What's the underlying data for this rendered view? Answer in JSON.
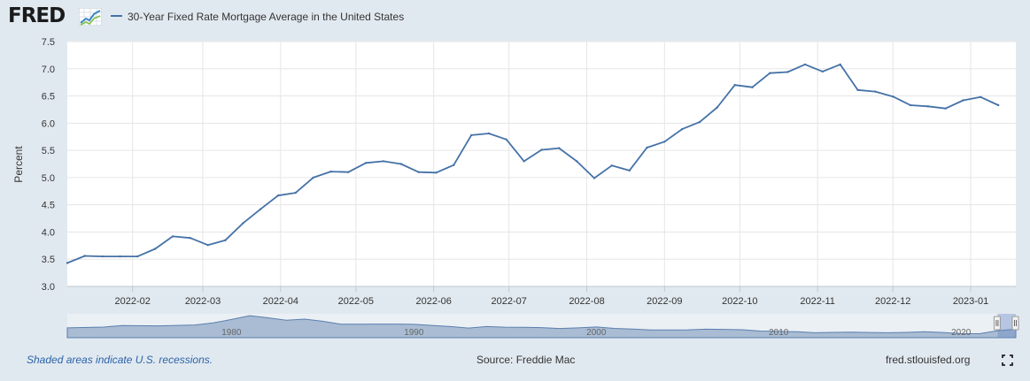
{
  "header": {
    "logo_text": "FRED",
    "logo_icon": "line-chart-icon",
    "legend_label": "30-Year Fixed Rate Mortgage Average in the United States"
  },
  "chart_data": {
    "type": "line",
    "title": "30-Year Fixed Rate Mortgage Average in the United States",
    "ylabel": "Percent",
    "xlabel": "",
    "ylim": [
      3.0,
      7.5
    ],
    "y_ticks": [
      "3.0",
      "3.5",
      "4.0",
      "4.5",
      "5.0",
      "5.5",
      "6.0",
      "6.5",
      "7.0",
      "7.5"
    ],
    "x_range": [
      "2022-01-06",
      "2023-01-19"
    ],
    "x_ticks": [
      {
        "date": "2022-02-01",
        "label": "2022-02"
      },
      {
        "date": "2022-03-01",
        "label": "2022-03"
      },
      {
        "date": "2022-04-01",
        "label": "2022-04"
      },
      {
        "date": "2022-05-01",
        "label": "2022-05"
      },
      {
        "date": "2022-06-01",
        "label": "2022-06"
      },
      {
        "date": "2022-07-01",
        "label": "2022-07"
      },
      {
        "date": "2022-08-01",
        "label": "2022-08"
      },
      {
        "date": "2022-09-01",
        "label": "2022-09"
      },
      {
        "date": "2022-10-01",
        "label": "2022-10"
      },
      {
        "date": "2022-11-01",
        "label": "2022-11"
      },
      {
        "date": "2022-12-01",
        "label": "2022-12"
      },
      {
        "date": "2023-01-01",
        "label": "2023-01"
      }
    ],
    "grid": true,
    "legend": "top-left",
    "series": [
      {
        "name": "30-Year Fixed Rate Mortgage Average in the United States",
        "color": "#4572a7",
        "points": [
          [
            "2022-01-06",
            3.43
          ],
          [
            "2022-01-13",
            3.56
          ],
          [
            "2022-01-20",
            3.55
          ],
          [
            "2022-01-27",
            3.55
          ],
          [
            "2022-02-03",
            3.55
          ],
          [
            "2022-02-10",
            3.69
          ],
          [
            "2022-02-17",
            3.92
          ],
          [
            "2022-02-24",
            3.89
          ],
          [
            "2022-03-03",
            3.76
          ],
          [
            "2022-03-10",
            3.85
          ],
          [
            "2022-03-17",
            4.16
          ],
          [
            "2022-03-24",
            4.42
          ],
          [
            "2022-03-31",
            4.67
          ],
          [
            "2022-04-07",
            4.72
          ],
          [
            "2022-04-14",
            5.0
          ],
          [
            "2022-04-21",
            5.11
          ],
          [
            "2022-04-28",
            5.1
          ],
          [
            "2022-05-05",
            5.27
          ],
          [
            "2022-05-12",
            5.3
          ],
          [
            "2022-05-19",
            5.25
          ],
          [
            "2022-05-26",
            5.1
          ],
          [
            "2022-06-02",
            5.09
          ],
          [
            "2022-06-09",
            5.23
          ],
          [
            "2022-06-16",
            5.78
          ],
          [
            "2022-06-23",
            5.81
          ],
          [
            "2022-06-30",
            5.7
          ],
          [
            "2022-07-07",
            5.3
          ],
          [
            "2022-07-14",
            5.51
          ],
          [
            "2022-07-21",
            5.54
          ],
          [
            "2022-07-28",
            5.3
          ],
          [
            "2022-08-04",
            4.99
          ],
          [
            "2022-08-11",
            5.22
          ],
          [
            "2022-08-18",
            5.13
          ],
          [
            "2022-08-25",
            5.55
          ],
          [
            "2022-09-01",
            5.66
          ],
          [
            "2022-09-08",
            5.89
          ],
          [
            "2022-09-15",
            6.02
          ],
          [
            "2022-09-22",
            6.29
          ],
          [
            "2022-09-29",
            6.7
          ],
          [
            "2022-10-06",
            6.66
          ],
          [
            "2022-10-13",
            6.92
          ],
          [
            "2022-10-20",
            6.94
          ],
          [
            "2022-10-27",
            7.08
          ],
          [
            "2022-11-03",
            6.95
          ],
          [
            "2022-11-10",
            7.08
          ],
          [
            "2022-11-17",
            6.61
          ],
          [
            "2022-11-24",
            6.58
          ],
          [
            "2022-12-01",
            6.49
          ],
          [
            "2022-12-08",
            6.33
          ],
          [
            "2022-12-15",
            6.31
          ],
          [
            "2022-12-22",
            6.27
          ],
          [
            "2022-12-29",
            6.42
          ],
          [
            "2023-01-05",
            6.48
          ],
          [
            "2023-01-12",
            6.33
          ]
        ]
      }
    ]
  },
  "navigator": {
    "labels": [
      "1980",
      "1990",
      "2000",
      "2010",
      "2020"
    ],
    "range": [
      1971,
      2023
    ],
    "window": [
      2022.0,
      2023.05
    ],
    "history": [
      [
        1971,
        7.4
      ],
      [
        1973,
        8.0
      ],
      [
        1974,
        9.2
      ],
      [
        1976,
        8.9
      ],
      [
        1978,
        9.6
      ],
      [
        1979,
        11.2
      ],
      [
        1980,
        13.7
      ],
      [
        1981,
        16.6
      ],
      [
        1982,
        15.0
      ],
      [
        1983,
        13.2
      ],
      [
        1984,
        14.0
      ],
      [
        1985,
        12.4
      ],
      [
        1986,
        10.2
      ],
      [
        1987,
        10.2
      ],
      [
        1988,
        10.3
      ],
      [
        1989,
        10.3
      ],
      [
        1990,
        10.1
      ],
      [
        1991,
        9.3
      ],
      [
        1992,
        8.4
      ],
      [
        1993,
        7.3
      ],
      [
        1994,
        8.4
      ],
      [
        1995,
        7.9
      ],
      [
        1996,
        7.8
      ],
      [
        1997,
        7.6
      ],
      [
        1998,
        6.9
      ],
      [
        1999,
        7.4
      ],
      [
        2000,
        8.1
      ],
      [
        2001,
        7.0
      ],
      [
        2002,
        6.5
      ],
      [
        2003,
        5.8
      ],
      [
        2004,
        5.8
      ],
      [
        2005,
        5.9
      ],
      [
        2006,
        6.4
      ],
      [
        2007,
        6.3
      ],
      [
        2008,
        6.0
      ],
      [
        2009,
        5.0
      ],
      [
        2010,
        4.7
      ],
      [
        2011,
        4.5
      ],
      [
        2012,
        3.7
      ],
      [
        2013,
        4.0
      ],
      [
        2014,
        4.2
      ],
      [
        2015,
        3.9
      ],
      [
        2016,
        3.7
      ],
      [
        2017,
        4.0
      ],
      [
        2018,
        4.5
      ],
      [
        2019,
        3.9
      ],
      [
        2020,
        3.1
      ],
      [
        2021,
        3.0
      ],
      [
        2022,
        5.3
      ],
      [
        2023,
        6.4
      ]
    ]
  },
  "footer": {
    "recession_note": "Shaded areas indicate U.S. recessions.",
    "source": "Source: Freddie Mac",
    "site": "fred.stlouisfed.org",
    "fullscreen_icon": "fullscreen-icon"
  }
}
